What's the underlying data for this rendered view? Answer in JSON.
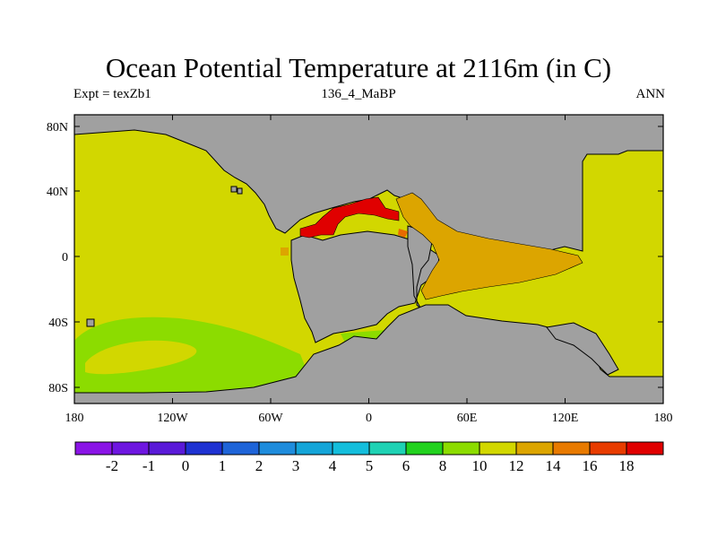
{
  "title": "Ocean Potential Temperature at 2116m (in C)",
  "subtitle_left": "Expt = texZb1",
  "subtitle_center": "136_4_MaBP",
  "subtitle_right": "ANN",
  "colors": {
    "land": "#a0a0a0",
    "coast": "#000000",
    "t10": "#8cdc00",
    "t12": "#d2d700",
    "t14": "#dca500",
    "t16": "#e86a00",
    "t18": "#e00000"
  },
  "map": {
    "lon_range": [
      -180,
      180
    ],
    "lat_range": [
      -90,
      90
    ],
    "lon_tick_labels": [
      "180",
      "120W",
      "60W",
      "0",
      "60E",
      "120E",
      "180"
    ],
    "lat_tick_labels": [
      "80N",
      "40N",
      "0",
      "40S",
      "80S"
    ]
  },
  "colorbar": {
    "colors": [
      "#8a14e6",
      "#6e16e0",
      "#5a1ad8",
      "#1e32d2",
      "#1e64d8",
      "#1e8cdc",
      "#14a5d8",
      "#14bedc",
      "#1ed2b4",
      "#22d21e",
      "#8cdc00",
      "#d2d700",
      "#dca500",
      "#e87a00",
      "#e83c00",
      "#e00000"
    ],
    "labels": [
      "-2",
      "-1",
      "0",
      "1",
      "2",
      "3",
      "4",
      "5",
      "6",
      "8",
      "10",
      "12",
      "14",
      "16",
      "18"
    ]
  }
}
